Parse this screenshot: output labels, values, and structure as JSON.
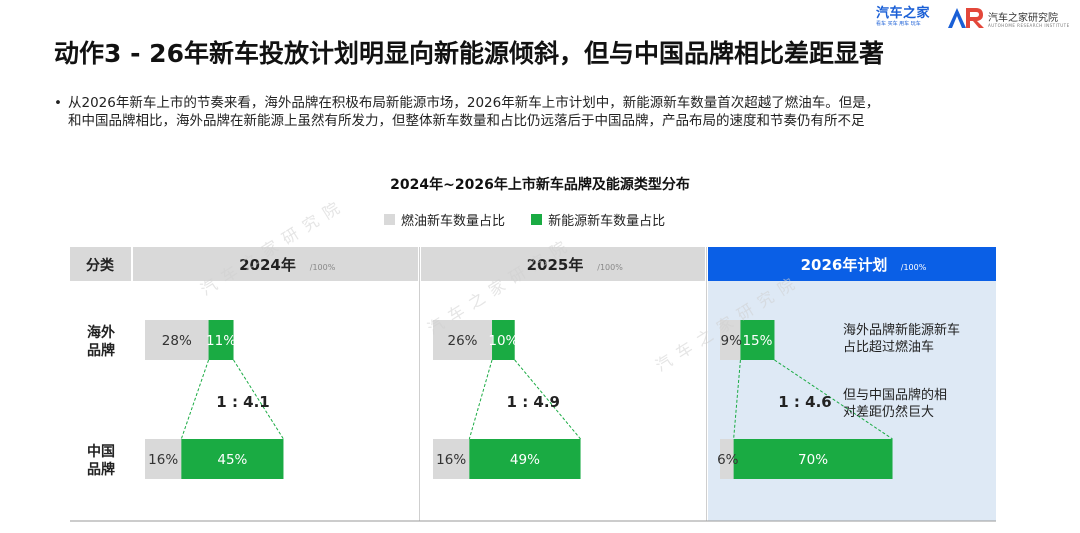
{
  "logos": {
    "autohome": {
      "name": "汽车之家",
      "tagline": "看车 买车 用车 玩车"
    },
    "institute": {
      "name": "汽车之家研究院",
      "tagline": "AUTOHOME RESEARCH INSTITUTE"
    }
  },
  "slide": {
    "title": "动作3 - 26年新车投放计划明显向新能源倾斜，但与中国品牌相比差距显著",
    "bullet_line1": "从2026年新车上市的节奏来看，海外品牌在积极布局新能源市场，2026年新车上市计划中，新能源新车数量首次超越了燃油车。但是，",
    "bullet_line2": "和中国品牌相比，海外品牌在新能源上虽然有所发力，但整体新车数量和占比仍远落后于中国品牌，产品布局的速度和节奏仍有所不足"
  },
  "watermark": "汽车之家研究院",
  "chart_data": {
    "type": "bar",
    "title": "2024年~2026年上市新车品牌及能源类型分布",
    "series": [
      {
        "name": "燃油新车数量占比",
        "color": "#d9d9d9"
      },
      {
        "name": "新能源新车数量占比",
        "color": "#1aab43"
      }
    ],
    "category_header": "分类",
    "unit": "/100%",
    "categories": [
      "海外品牌",
      "中国品牌"
    ],
    "periods": [
      {
        "label": "2024年",
        "highlight": false,
        "rows": [
          {
            "category": "海外品牌",
            "fuel": 28,
            "nev": 11,
            "fuel_label": "28%",
            "nev_label": "11%"
          },
          {
            "category": "中国品牌",
            "fuel": 16,
            "nev": 45,
            "fuel_label": "16%",
            "nev_label": "45%"
          }
        ],
        "ratio": "1 : 4.1"
      },
      {
        "label": "2025年",
        "highlight": false,
        "rows": [
          {
            "category": "海外品牌",
            "fuel": 26,
            "nev": 10,
            "fuel_label": "26%",
            "nev_label": "10%"
          },
          {
            "category": "中国品牌",
            "fuel": 16,
            "nev": 49,
            "fuel_label": "16%",
            "nev_label": "49%"
          }
        ],
        "ratio": "1 : 4.9"
      },
      {
        "label": "2026年计划",
        "highlight": true,
        "rows": [
          {
            "category": "海外品牌",
            "fuel": 9,
            "nev": 15,
            "fuel_label": "9%",
            "nev_label": "15%"
          },
          {
            "category": "中国品牌",
            "fuel": 6,
            "nev": 70,
            "fuel_label": "6%",
            "nev_label": "70%"
          }
        ],
        "ratio": "1 : 4.6",
        "annotations": [
          "海外品牌新能源新车占比超过燃油车",
          "但与中国品牌的相对差距仍然巨大"
        ]
      }
    ]
  }
}
